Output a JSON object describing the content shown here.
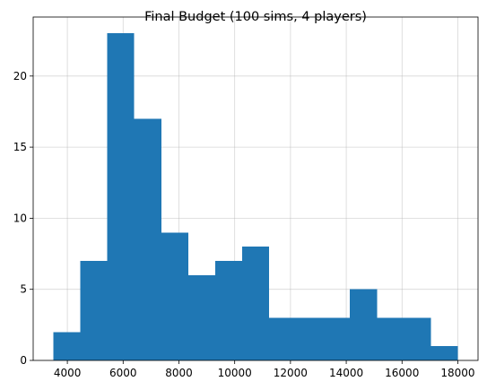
{
  "chart_data": {
    "type": "bar",
    "title": "Final Budget (100 sims, 4 players)",
    "xlabel": "",
    "ylabel": "",
    "bin_edges": [
      3500,
      4467,
      5433,
      6400,
      7367,
      8333,
      9300,
      10267,
      11233,
      12200,
      13167,
      14133,
      15100,
      16067,
      17033,
      18000
    ],
    "values": [
      2,
      7,
      23,
      17,
      9,
      6,
      7,
      8,
      3,
      3,
      3,
      5,
      3,
      3,
      1
    ],
    "xlim": [
      2775,
      18725
    ],
    "ylim": [
      0,
      24.15
    ],
    "x_ticks": [
      4000,
      6000,
      8000,
      10000,
      12000,
      14000,
      16000,
      18000
    ],
    "x_tick_labels": [
      "4000",
      "6000",
      "8000",
      "10000",
      "12000",
      "14000",
      "16000",
      "18000"
    ],
    "y_ticks": [
      0,
      5,
      10,
      15,
      20
    ],
    "y_tick_labels": [
      "0",
      "5",
      "10",
      "15",
      "20"
    ],
    "bar_color": "#1f77b4",
    "grid": true,
    "legend": "none"
  }
}
